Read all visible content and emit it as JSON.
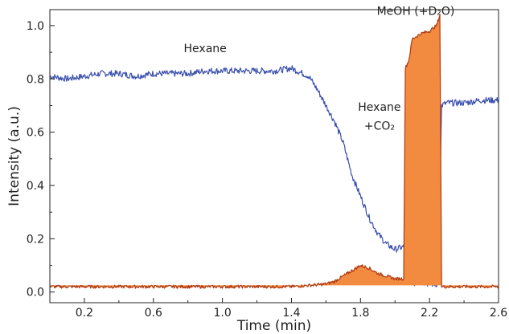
{
  "chart_data": {
    "type": "line",
    "xlabel": "Time (min)",
    "ylabel": "Intensity (a.u.)",
    "xlim": [
      0.0,
      2.6
    ],
    "ylim": [
      -0.04,
      1.06
    ],
    "xticks": [
      0.2,
      0.6,
      1.0,
      1.4,
      1.8,
      2.2,
      2.6
    ],
    "xticks_minor": [
      0.0,
      0.4,
      0.8,
      1.2,
      1.6,
      2.0,
      2.4
    ],
    "yticks": [
      0.0,
      0.2,
      0.4,
      0.6,
      0.8,
      1.0
    ],
    "yticks_minor": [
      0.1,
      0.3,
      0.5,
      0.7,
      0.9
    ],
    "grid": false,
    "annotations": [
      {
        "label": "Hexane",
        "x": 0.9,
        "y": 0.9
      },
      {
        "label": "Hexane",
        "x": 1.91,
        "y": 0.68
      },
      {
        "label": "+CO₂",
        "x": 1.91,
        "y": 0.61
      },
      {
        "label": "MeOH (+D₂O)",
        "x": 2.12,
        "y": 1.04
      }
    ],
    "series": [
      {
        "color": "#3a4fae",
        "fill": false,
        "x": [
          0.0,
          0.1,
          0.2,
          0.3,
          0.4,
          0.5,
          0.6,
          0.7,
          0.8,
          0.9,
          1.0,
          1.1,
          1.2,
          1.3,
          1.4,
          1.5,
          1.55,
          1.6,
          1.65,
          1.7,
          1.75,
          1.8,
          1.85,
          1.9,
          1.95,
          2.0,
          2.05,
          2.08,
          2.1,
          2.15,
          2.2,
          2.25,
          2.27,
          2.3,
          2.4,
          2.5,
          2.6
        ],
        "values": [
          0.81,
          0.8,
          0.81,
          0.82,
          0.82,
          0.81,
          0.82,
          0.82,
          0.82,
          0.83,
          0.83,
          0.83,
          0.83,
          0.83,
          0.84,
          0.81,
          0.76,
          0.7,
          0.64,
          0.56,
          0.44,
          0.36,
          0.28,
          0.22,
          0.18,
          0.16,
          0.17,
          0.06,
          0.03,
          0.04,
          0.03,
          0.03,
          0.7,
          0.71,
          0.71,
          0.72,
          0.72
        ]
      },
      {
        "color": "#b03a12",
        "fill": true,
        "fill_color": "#f28a3f",
        "x": [
          0.0,
          0.2,
          0.4,
          0.6,
          0.8,
          1.0,
          1.2,
          1.4,
          1.6,
          1.65,
          1.7,
          1.75,
          1.8,
          1.85,
          1.9,
          1.95,
          2.0,
          2.05,
          2.06,
          2.08,
          2.1,
          2.15,
          2.2,
          2.24,
          2.26,
          2.27,
          2.3,
          2.4,
          2.5,
          2.6
        ],
        "values": [
          0.02,
          0.02,
          0.02,
          0.02,
          0.02,
          0.02,
          0.02,
          0.02,
          0.03,
          0.04,
          0.06,
          0.08,
          0.1,
          0.09,
          0.07,
          0.06,
          0.05,
          0.05,
          0.84,
          0.87,
          0.95,
          0.97,
          0.98,
          1.0,
          1.04,
          0.02,
          0.02,
          0.02,
          0.02,
          0.02
        ]
      }
    ]
  }
}
